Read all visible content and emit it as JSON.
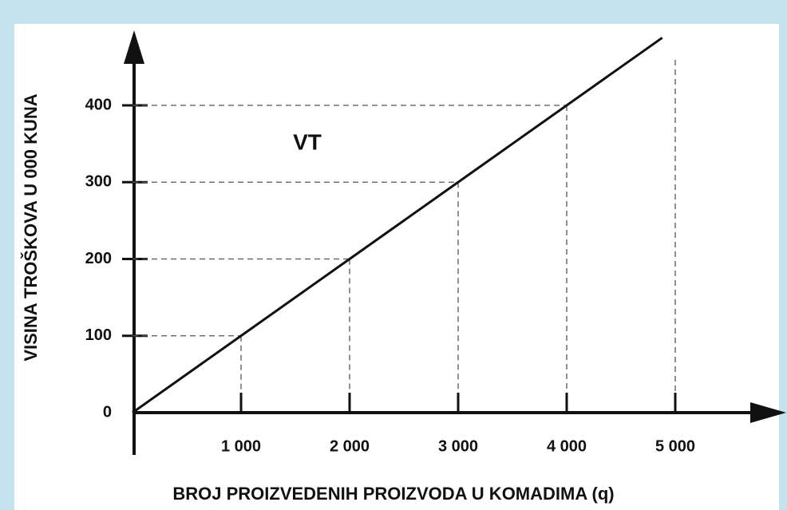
{
  "chart_data": {
    "type": "line",
    "x_label": "BROJ PROIZVEDENIH PROIZVODA U KOMADIMA (q)",
    "y_label": "VISINA TROŠKOVA U 000 KUNA",
    "annotation": "VT",
    "x": [
      0,
      1000,
      2000,
      3000,
      4000,
      4880
    ],
    "series": [
      {
        "name": "VT",
        "color": "#111111",
        "values": [
          0,
          100,
          200,
          300,
          400,
          488
        ]
      }
    ],
    "xlim": [
      0,
      5000
    ],
    "ylim": [
      0,
      400
    ],
    "xticks": [
      {
        "value": 1000,
        "label": "1 000"
      },
      {
        "value": 2000,
        "label": "2 000"
      },
      {
        "value": 3000,
        "label": "3 000"
      },
      {
        "value": 4000,
        "label": "4 000"
      },
      {
        "value": 5000,
        "label": "5 000"
      }
    ],
    "yticks": [
      0,
      100,
      200,
      300,
      400
    ],
    "guides": true
  }
}
